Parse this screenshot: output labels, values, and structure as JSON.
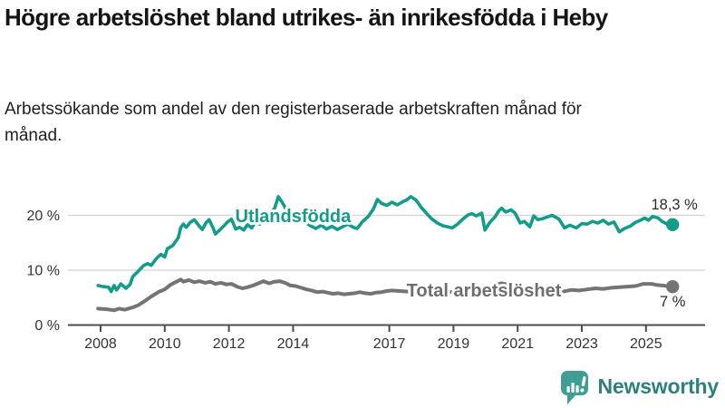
{
  "header": {
    "title": "Högre arbetslöshet bland utrikes- än inrikesfödda i Heby",
    "subtitle": "Arbetssökande som andel av den registerbaserade arbetskraften månad för månad."
  },
  "chart_data": {
    "type": "line",
    "unit": "%",
    "x_axis": {
      "ticks": [
        2008,
        2010,
        2012,
        2014,
        2017,
        2019,
        2021,
        2023,
        2025
      ],
      "range": [
        2007.9,
        2026.8
      ]
    },
    "y_axis": {
      "ticks": [
        0,
        10,
        20
      ],
      "tick_suffix": " %",
      "range": [
        0,
        26
      ]
    },
    "style": {
      "grid_color": "#d9d9d9",
      "axis_color": "#4d4d4d",
      "axis_text_color": "#333333",
      "annotation_text_color": "#2b2b2b",
      "background": "#ffffff"
    },
    "series": [
      {
        "id": "utlandsfodda",
        "name": "Utlandsfödda",
        "color": "#149c8b",
        "line_width": 3.6,
        "label": {
          "x": 2014.0,
          "y": 19.9
        },
        "end_label": {
          "text": "18,3 %",
          "dx": 2,
          "dy": -17
        },
        "points": [
          [
            2007.92,
            7.2
          ],
          [
            2008.08,
            7.0
          ],
          [
            2008.25,
            6.9
          ],
          [
            2008.33,
            6.1
          ],
          [
            2008.42,
            7.2
          ],
          [
            2008.5,
            6.4
          ],
          [
            2008.63,
            7.5
          ],
          [
            2008.79,
            6.7
          ],
          [
            2008.92,
            7.4
          ],
          [
            2009.0,
            8.8
          ],
          [
            2009.17,
            9.8
          ],
          [
            2009.33,
            10.8
          ],
          [
            2009.46,
            11.2
          ],
          [
            2009.58,
            10.9
          ],
          [
            2009.75,
            12.2
          ],
          [
            2009.88,
            12.9
          ],
          [
            2010.0,
            12.4
          ],
          [
            2010.08,
            13.9
          ],
          [
            2010.25,
            14.5
          ],
          [
            2010.42,
            15.9
          ],
          [
            2010.5,
            17.8
          ],
          [
            2010.58,
            18.4
          ],
          [
            2010.67,
            17.8
          ],
          [
            2010.79,
            18.7
          ],
          [
            2010.92,
            19.2
          ],
          [
            2011.04,
            18.3
          ],
          [
            2011.17,
            17.4
          ],
          [
            2011.29,
            18.7
          ],
          [
            2011.38,
            19.2
          ],
          [
            2011.5,
            17.8
          ],
          [
            2011.58,
            16.6
          ],
          [
            2011.71,
            17.3
          ],
          [
            2011.83,
            18.0
          ],
          [
            2011.96,
            18.8
          ],
          [
            2012.08,
            19.3
          ],
          [
            2012.21,
            17.5
          ],
          [
            2012.33,
            17.8
          ],
          [
            2012.46,
            17.3
          ],
          [
            2012.58,
            18.3
          ],
          [
            2012.71,
            17.7
          ],
          [
            2012.83,
            18.9
          ],
          [
            2012.96,
            18.4
          ],
          [
            2013.08,
            19.6
          ],
          [
            2013.21,
            19.9
          ],
          [
            2013.33,
            20.7
          ],
          [
            2013.42,
            21.2
          ],
          [
            2013.54,
            23.4
          ],
          [
            2013.67,
            22.3
          ],
          [
            2013.79,
            21.0
          ],
          [
            2013.92,
            20.3
          ],
          [
            2014.04,
            19.8
          ],
          [
            2014.21,
            19.3
          ],
          [
            2014.38,
            18.8
          ],
          [
            2014.54,
            18.1
          ],
          [
            2014.71,
            17.6
          ],
          [
            2014.88,
            18.2
          ],
          [
            2015.04,
            17.5
          ],
          [
            2015.21,
            18.0
          ],
          [
            2015.38,
            17.4
          ],
          [
            2015.54,
            17.9
          ],
          [
            2015.71,
            18.4
          ],
          [
            2015.88,
            17.8
          ],
          [
            2016.0,
            17.6
          ],
          [
            2016.17,
            18.9
          ],
          [
            2016.33,
            19.7
          ],
          [
            2016.5,
            21.1
          ],
          [
            2016.63,
            22.9
          ],
          [
            2016.75,
            22.2
          ],
          [
            2016.92,
            21.8
          ],
          [
            2017.08,
            22.4
          ],
          [
            2017.25,
            21.9
          ],
          [
            2017.42,
            22.5
          ],
          [
            2017.54,
            22.8
          ],
          [
            2017.67,
            23.4
          ],
          [
            2017.83,
            22.8
          ],
          [
            2018.0,
            21.4
          ],
          [
            2018.17,
            20.3
          ],
          [
            2018.33,
            19.3
          ],
          [
            2018.5,
            18.6
          ],
          [
            2018.67,
            18.1
          ],
          [
            2018.83,
            17.9
          ],
          [
            2018.96,
            17.7
          ],
          [
            2019.13,
            18.4
          ],
          [
            2019.29,
            19.3
          ],
          [
            2019.46,
            20.1
          ],
          [
            2019.58,
            20.3
          ],
          [
            2019.71,
            19.9
          ],
          [
            2019.88,
            20.4
          ],
          [
            2019.98,
            17.3
          ],
          [
            2020.13,
            18.7
          ],
          [
            2020.29,
            19.7
          ],
          [
            2020.42,
            20.9
          ],
          [
            2020.5,
            21.3
          ],
          [
            2020.63,
            20.6
          ],
          [
            2020.79,
            21.0
          ],
          [
            2020.92,
            20.4
          ],
          [
            2021.08,
            18.6
          ],
          [
            2021.21,
            18.9
          ],
          [
            2021.38,
            17.9
          ],
          [
            2021.5,
            19.9
          ],
          [
            2021.63,
            19.2
          ],
          [
            2021.79,
            19.4
          ],
          [
            2021.92,
            19.7
          ],
          [
            2022.08,
            20.0
          ],
          [
            2022.29,
            19.3
          ],
          [
            2022.46,
            17.7
          ],
          [
            2022.63,
            18.2
          ],
          [
            2022.83,
            17.7
          ],
          [
            2023.0,
            18.5
          ],
          [
            2023.17,
            18.4
          ],
          [
            2023.33,
            18.9
          ],
          [
            2023.5,
            18.6
          ],
          [
            2023.67,
            19.1
          ],
          [
            2023.83,
            18.4
          ],
          [
            2024.0,
            18.8
          ],
          [
            2024.17,
            17.0
          ],
          [
            2024.33,
            17.6
          ],
          [
            2024.5,
            18.0
          ],
          [
            2024.67,
            18.7
          ],
          [
            2024.83,
            19.1
          ],
          [
            2024.96,
            19.5
          ],
          [
            2025.08,
            19.1
          ],
          [
            2025.21,
            19.8
          ],
          [
            2025.38,
            19.5
          ],
          [
            2025.5,
            18.9
          ],
          [
            2025.63,
            18.5
          ],
          [
            2025.75,
            18.2
          ],
          [
            2025.83,
            18.3
          ]
        ],
        "end_value": 18.3
      },
      {
        "id": "total",
        "name": "Total arbetslöshet",
        "color": "#747474",
        "label_color": "#6e6e6e",
        "line_width": 4,
        "label": {
          "x": 2019.95,
          "y": 6.35
        },
        "end_label": {
          "text": "7 %",
          "dx": 0,
          "dy": 22
        },
        "points": [
          [
            2007.92,
            3.0
          ],
          [
            2008.17,
            2.9
          ],
          [
            2008.42,
            2.7
          ],
          [
            2008.58,
            3.0
          ],
          [
            2008.75,
            2.8
          ],
          [
            2009.0,
            3.2
          ],
          [
            2009.17,
            3.6
          ],
          [
            2009.33,
            4.2
          ],
          [
            2009.58,
            5.2
          ],
          [
            2009.83,
            6.1
          ],
          [
            2010.0,
            6.5
          ],
          [
            2010.17,
            7.3
          ],
          [
            2010.33,
            7.8
          ],
          [
            2010.5,
            8.3
          ],
          [
            2010.58,
            7.9
          ],
          [
            2010.75,
            8.2
          ],
          [
            2010.92,
            7.8
          ],
          [
            2011.08,
            8.0
          ],
          [
            2011.25,
            7.7
          ],
          [
            2011.42,
            7.9
          ],
          [
            2011.58,
            7.5
          ],
          [
            2011.75,
            7.7
          ],
          [
            2011.92,
            7.4
          ],
          [
            2012.08,
            7.5
          ],
          [
            2012.25,
            7.0
          ],
          [
            2012.42,
            6.7
          ],
          [
            2012.58,
            6.9
          ],
          [
            2012.75,
            7.2
          ],
          [
            2012.92,
            7.6
          ],
          [
            2013.08,
            8.0
          ],
          [
            2013.25,
            7.6
          ],
          [
            2013.42,
            7.9
          ],
          [
            2013.58,
            8.0
          ],
          [
            2013.75,
            7.7
          ],
          [
            2013.92,
            7.2
          ],
          [
            2014.08,
            7.1
          ],
          [
            2014.25,
            6.8
          ],
          [
            2014.42,
            6.5
          ],
          [
            2014.58,
            6.3
          ],
          [
            2014.75,
            6.0
          ],
          [
            2014.92,
            6.1
          ],
          [
            2015.08,
            5.9
          ],
          [
            2015.25,
            5.7
          ],
          [
            2015.42,
            5.8
          ],
          [
            2015.58,
            5.6
          ],
          [
            2015.75,
            5.7
          ],
          [
            2015.92,
            5.8
          ],
          [
            2016.08,
            6.0
          ],
          [
            2016.25,
            5.8
          ],
          [
            2016.42,
            5.7
          ],
          [
            2016.58,
            5.9
          ],
          [
            2016.75,
            6.0
          ],
          [
            2016.92,
            6.2
          ],
          [
            2017.08,
            6.3
          ],
          [
            2017.33,
            6.2
          ],
          [
            2017.58,
            6.1
          ],
          [
            2017.83,
            6.2
          ],
          [
            2018.08,
            6.0
          ],
          [
            2018.33,
            6.1
          ],
          [
            2018.58,
            5.9
          ],
          [
            2018.83,
            6.0
          ],
          [
            2019.08,
            6.1
          ],
          [
            2019.33,
            6.2
          ],
          [
            2019.58,
            6.3
          ],
          [
            2019.83,
            6.3
          ],
          [
            2020.08,
            6.7
          ],
          [
            2020.33,
            7.4
          ],
          [
            2020.5,
            7.6
          ],
          [
            2020.67,
            7.4
          ],
          [
            2020.92,
            7.1
          ],
          [
            2021.17,
            6.8
          ],
          [
            2021.42,
            6.6
          ],
          [
            2021.67,
            6.4
          ],
          [
            2021.92,
            6.3
          ],
          [
            2022.17,
            6.3
          ],
          [
            2022.42,
            6.1
          ],
          [
            2022.67,
            6.4
          ],
          [
            2022.92,
            6.3
          ],
          [
            2023.17,
            6.5
          ],
          [
            2023.42,
            6.7
          ],
          [
            2023.67,
            6.6
          ],
          [
            2023.92,
            6.8
          ],
          [
            2024.17,
            6.9
          ],
          [
            2024.42,
            7.0
          ],
          [
            2024.67,
            7.1
          ],
          [
            2024.92,
            7.5
          ],
          [
            2025.17,
            7.5
          ],
          [
            2025.33,
            7.3
          ],
          [
            2025.5,
            7.2
          ],
          [
            2025.67,
            7.1
          ],
          [
            2025.83,
            7.0
          ]
        ],
        "end_value": 7.0
      }
    ]
  },
  "footer": {
    "brand": "Newsworthy",
    "icon": "newsworthy-chart-bubble-icon",
    "icon_color": "#3f9e94",
    "text_color": "#2e807a"
  }
}
